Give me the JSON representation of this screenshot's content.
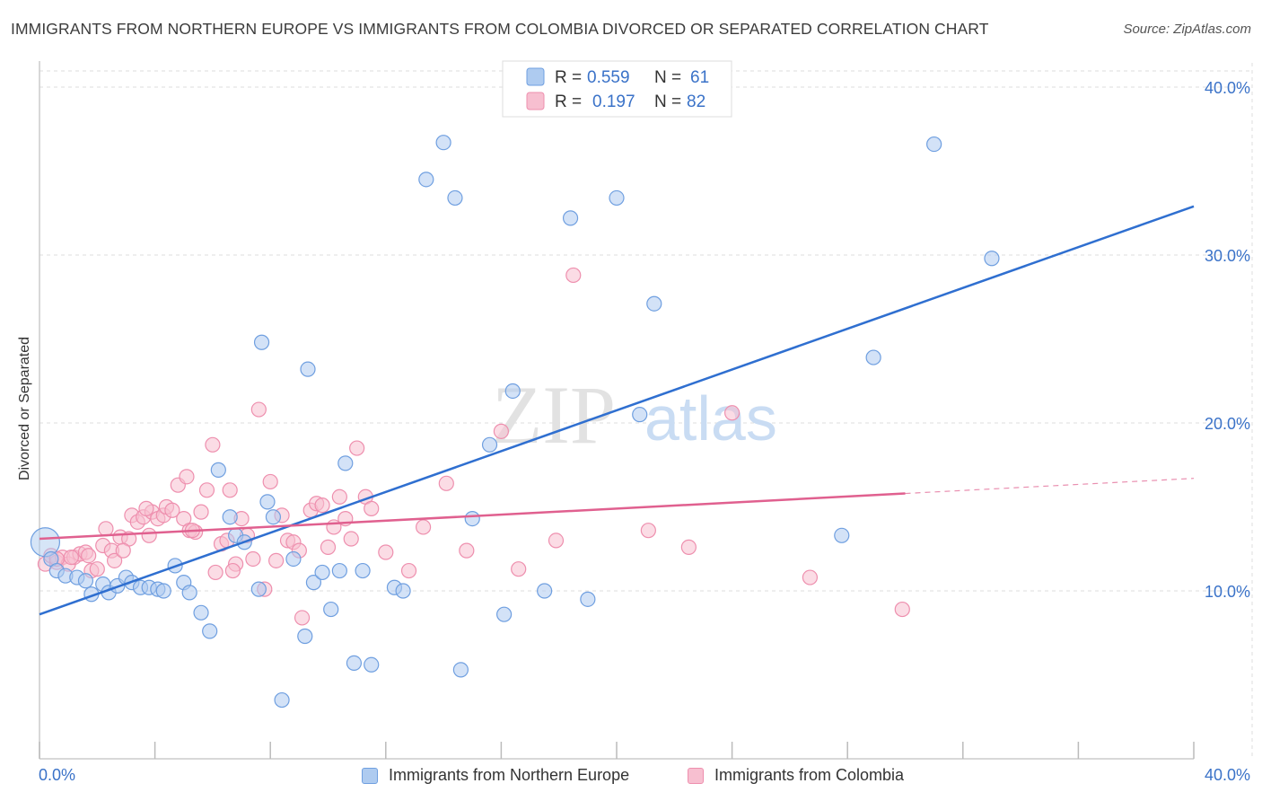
{
  "title": "IMMIGRANTS FROM NORTHERN EUROPE VS IMMIGRANTS FROM COLOMBIA DIVORCED OR SEPARATED CORRELATION CHART",
  "source": "Source: ZipAtlas.com",
  "watermark": {
    "zip": "ZIP",
    "atlas": "atlas"
  },
  "colors": {
    "blue_fill": "#aecbf0",
    "blue_stroke": "#6f9fe0",
    "blue_line": "#2f6fd0",
    "pink_fill": "#f7bfd0",
    "pink_stroke": "#ee8fae",
    "pink_line": "#e0608f",
    "tick_text": "#3a72c8",
    "grid": "#dddddd"
  },
  "legend": {
    "rows": [
      {
        "r_label": "R =",
        "r_value": "0.559",
        "n_label": "N =",
        "n_value": "61"
      },
      {
        "r_label": "R =",
        "r_value": "0.197",
        "n_label": "N =",
        "n_value": "82"
      }
    ],
    "placement": "top-center"
  },
  "chart_data": {
    "type": "scatter",
    "title": "IMMIGRANTS FROM NORTHERN EUROPE VS IMMIGRANTS FROM COLOMBIA DIVORCED OR SEPARATED CORRELATION CHART",
    "xlabel": "",
    "ylabel": "Divorced or Separated",
    "xlim": [
      0,
      40
    ],
    "ylim": [
      0,
      40
    ],
    "x_tick_labels": [
      "0.0%",
      "40.0%"
    ],
    "y_ticks": [
      {
        "value": 10,
        "label": "10.0%"
      },
      {
        "value": 20,
        "label": "20.0%"
      },
      {
        "value": 30,
        "label": "30.0%"
      },
      {
        "value": 40,
        "label": "40.0%"
      }
    ],
    "grid": "horizontal dashed",
    "series": [
      {
        "name": "Immigrants from Northern Europe",
        "color": "#aecbf0",
        "regression": {
          "x": [
            0,
            40
          ],
          "y": [
            8.6,
            32.9
          ]
        },
        "points": [
          [
            0.2,
            12.9
          ],
          [
            0.4,
            11.9
          ],
          [
            0.6,
            11.2
          ],
          [
            0.9,
            10.9
          ],
          [
            1.3,
            10.8
          ],
          [
            1.6,
            10.6
          ],
          [
            1.8,
            9.8
          ],
          [
            2.2,
            10.4
          ],
          [
            2.4,
            9.9
          ],
          [
            2.7,
            10.3
          ],
          [
            3.0,
            10.8
          ],
          [
            3.2,
            10.5
          ],
          [
            3.5,
            10.2
          ],
          [
            3.8,
            10.2
          ],
          [
            4.1,
            10.1
          ],
          [
            4.3,
            10.0
          ],
          [
            4.7,
            11.5
          ],
          [
            5.0,
            10.5
          ],
          [
            5.2,
            9.9
          ],
          [
            5.6,
            8.7
          ],
          [
            5.9,
            7.6
          ],
          [
            6.2,
            17.2
          ],
          [
            6.6,
            14.4
          ],
          [
            6.8,
            13.3
          ],
          [
            7.1,
            12.9
          ],
          [
            7.6,
            10.1
          ],
          [
            7.7,
            24.8
          ],
          [
            7.9,
            15.3
          ],
          [
            8.1,
            14.4
          ],
          [
            8.4,
            3.5
          ],
          [
            8.8,
            11.9
          ],
          [
            9.2,
            7.3
          ],
          [
            9.3,
            23.2
          ],
          [
            9.5,
            10.5
          ],
          [
            9.8,
            11.1
          ],
          [
            10.1,
            8.9
          ],
          [
            10.4,
            11.2
          ],
          [
            10.6,
            17.6
          ],
          [
            10.9,
            5.7
          ],
          [
            11.2,
            11.2
          ],
          [
            11.5,
            5.6
          ],
          [
            12.3,
            10.2
          ],
          [
            12.6,
            10.0
          ],
          [
            13.4,
            34.5
          ],
          [
            14.0,
            36.7
          ],
          [
            14.4,
            33.4
          ],
          [
            14.6,
            5.3
          ],
          [
            15.0,
            14.3
          ],
          [
            15.6,
            18.7
          ],
          [
            16.1,
            8.6
          ],
          [
            16.4,
            21.9
          ],
          [
            17.5,
            10.0
          ],
          [
            18.4,
            32.2
          ],
          [
            19.0,
            9.5
          ],
          [
            20.0,
            33.4
          ],
          [
            20.8,
            20.5
          ],
          [
            21.3,
            27.1
          ],
          [
            27.8,
            13.3
          ],
          [
            28.9,
            23.9
          ],
          [
            31.0,
            36.6
          ],
          [
            33.0,
            29.8
          ]
        ]
      },
      {
        "name": "Immigrants from Colombia",
        "color": "#f7bfd0",
        "regression": {
          "x": [
            0,
            30
          ],
          "y": [
            13.1,
            15.8
          ]
        },
        "regression_dashed": {
          "x": [
            30,
            40
          ],
          "y": [
            15.8,
            16.7
          ]
        },
        "points": [
          [
            0.2,
            11.6
          ],
          [
            0.4,
            12.1
          ],
          [
            0.6,
            11.7
          ],
          [
            0.8,
            12.0
          ],
          [
            1.0,
            11.6
          ],
          [
            1.2,
            12.0
          ],
          [
            1.4,
            12.2
          ],
          [
            1.6,
            12.3
          ],
          [
            1.8,
            11.2
          ],
          [
            2.0,
            11.3
          ],
          [
            2.2,
            12.7
          ],
          [
            2.3,
            13.7
          ],
          [
            2.5,
            12.4
          ],
          [
            2.6,
            11.8
          ],
          [
            2.8,
            13.2
          ],
          [
            3.1,
            13.1
          ],
          [
            3.2,
            14.5
          ],
          [
            3.4,
            14.1
          ],
          [
            3.6,
            14.4
          ],
          [
            3.8,
            13.3
          ],
          [
            3.9,
            14.7
          ],
          [
            4.1,
            14.3
          ],
          [
            4.3,
            14.5
          ],
          [
            4.4,
            15.0
          ],
          [
            4.6,
            14.8
          ],
          [
            4.8,
            16.3
          ],
          [
            5.0,
            14.3
          ],
          [
            5.1,
            16.8
          ],
          [
            5.2,
            13.6
          ],
          [
            5.4,
            13.5
          ],
          [
            5.6,
            14.7
          ],
          [
            5.8,
            16.0
          ],
          [
            6.0,
            18.7
          ],
          [
            6.1,
            11.1
          ],
          [
            6.3,
            12.8
          ],
          [
            6.5,
            13.0
          ],
          [
            6.6,
            16.0
          ],
          [
            6.8,
            11.6
          ],
          [
            7.0,
            14.3
          ],
          [
            7.2,
            13.3
          ],
          [
            7.4,
            11.9
          ],
          [
            7.6,
            20.8
          ],
          [
            7.8,
            10.1
          ],
          [
            8.0,
            16.5
          ],
          [
            8.2,
            11.8
          ],
          [
            8.4,
            14.5
          ],
          [
            8.6,
            13.0
          ],
          [
            8.8,
            12.9
          ],
          [
            9.0,
            12.4
          ],
          [
            9.1,
            8.4
          ],
          [
            9.4,
            14.8
          ],
          [
            9.6,
            15.2
          ],
          [
            9.8,
            15.1
          ],
          [
            10.0,
            12.6
          ],
          [
            10.2,
            13.8
          ],
          [
            10.4,
            15.6
          ],
          [
            10.6,
            14.3
          ],
          [
            10.8,
            13.1
          ],
          [
            11.0,
            18.5
          ],
          [
            11.3,
            15.6
          ],
          [
            11.5,
            14.9
          ],
          [
            12.0,
            12.3
          ],
          [
            12.8,
            11.2
          ],
          [
            13.3,
            13.8
          ],
          [
            14.1,
            16.4
          ],
          [
            14.8,
            12.4
          ],
          [
            16.0,
            19.5
          ],
          [
            16.6,
            11.3
          ],
          [
            17.9,
            13.0
          ],
          [
            18.5,
            28.8
          ],
          [
            21.1,
            13.6
          ],
          [
            22.5,
            12.6
          ],
          [
            24.0,
            20.6
          ],
          [
            26.7,
            10.8
          ],
          [
            29.9,
            8.9
          ],
          [
            0.6,
            11.9
          ],
          [
            1.1,
            12.0
          ],
          [
            1.7,
            12.1
          ],
          [
            2.9,
            12.4
          ],
          [
            3.7,
            14.9
          ],
          [
            5.3,
            13.6
          ],
          [
            6.7,
            11.2
          ]
        ]
      }
    ]
  },
  "bottom_legend": [
    {
      "label": "Immigrants from Northern Europe"
    },
    {
      "label": "Immigrants from Colombia"
    }
  ]
}
